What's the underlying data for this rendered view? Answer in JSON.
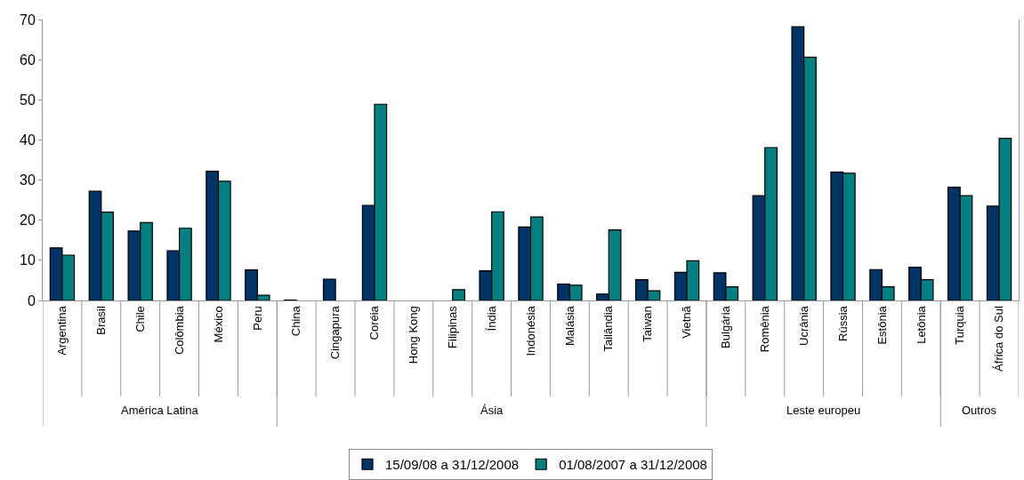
{
  "chart_data": {
    "type": "bar",
    "categories": [
      "Argentina",
      "Brasil",
      "Chile",
      "Colômbia",
      "México",
      "Peru",
      "China",
      "Cingapura",
      "Coréia",
      "Hong Kong",
      "Filipinas",
      "Índia",
      "Indonésia",
      "Malásia",
      "Tailândia",
      "Taiwan",
      "Vietnã",
      "Bulgária",
      "Romênia",
      "Ucrânia",
      "Rússia",
      "Estônia",
      "Letônia",
      "Turquia",
      "África do Sul"
    ],
    "series": [
      {
        "name": "15/09/08 a 31/12/2008",
        "color": "#003366",
        "values": [
          13.1,
          27.2,
          17.3,
          12.4,
          32.2,
          7.6,
          0.1,
          5.3,
          23.7,
          0,
          0,
          7.4,
          18.3,
          4.1,
          1.6,
          5.2,
          7.0,
          6.9,
          26.1,
          68.2,
          32.0,
          7.7,
          8.3,
          28.2,
          23.5
        ]
      },
      {
        "name": "01/08/2007 a 31/12/2008",
        "color": "#008080",
        "values": [
          11.3,
          22.0,
          19.4,
          18.0,
          29.7,
          1.3,
          0,
          0,
          48.9,
          0,
          2.7,
          22.1,
          20.8,
          3.8,
          17.6,
          2.4,
          9.9,
          3.4,
          38.1,
          60.6,
          31.7,
          3.4,
          5.2,
          26.1,
          40.4
        ]
      }
    ],
    "annotations": [
      "América Latina",
      "Ásia",
      "Leste europeu",
      "Outros"
    ],
    "ylim": [
      0,
      70
    ],
    "yticks": [
      0,
      10,
      20,
      30,
      40,
      50,
      60,
      70
    ],
    "grid": false,
    "legend": "bottom"
  }
}
